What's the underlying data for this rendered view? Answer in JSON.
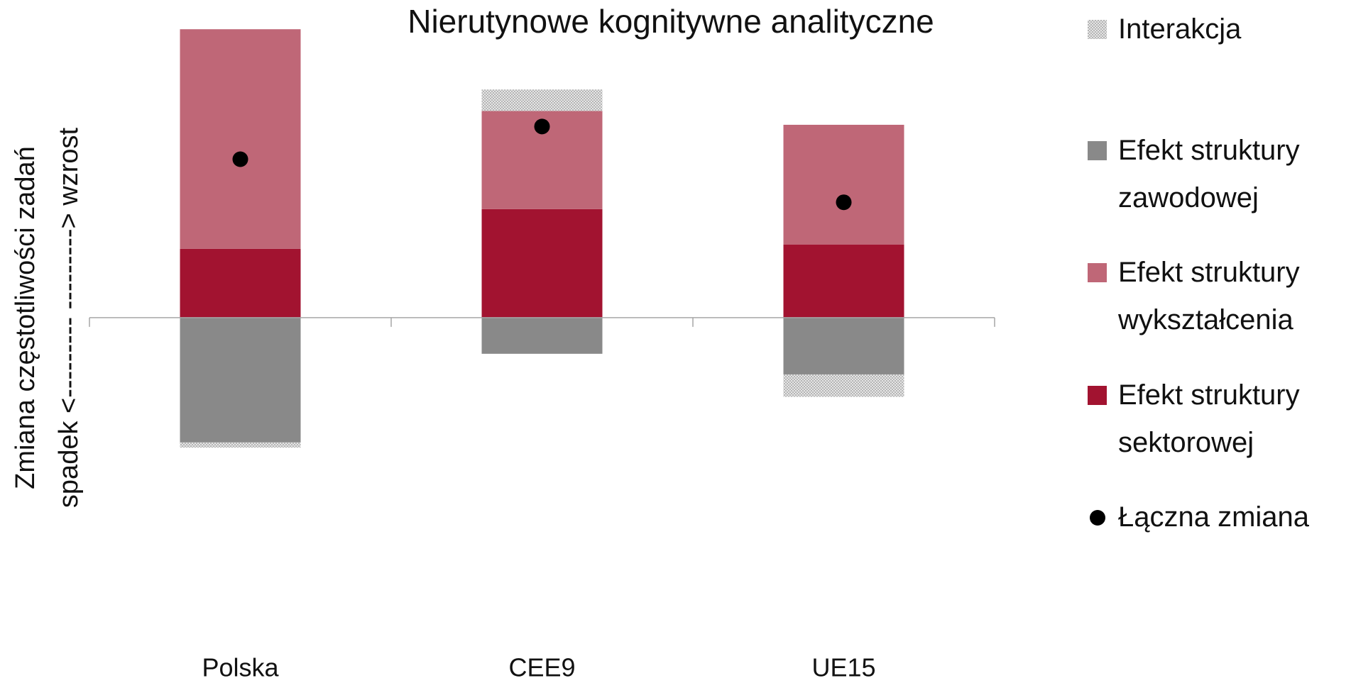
{
  "chart_data": {
    "type": "bar",
    "stacked": true,
    "title": "Nierutynowe kognitywne analityczne",
    "ylabel": [
      "Zmiana  częstotliwości  zadań",
      "spadek <--------- ---------> wzrost"
    ],
    "categories": [
      "Polska",
      "CEE9",
      "UE15"
    ],
    "ylim": [
      -3,
      3.5
    ],
    "series": [
      {
        "name": "Interakcja",
        "color": "#c8c8c8",
        "pattern": true,
        "values": [
          -0.06,
          0.25,
          -0.26
        ]
      },
      {
        "name": "Efekt struktury zawodowej",
        "color": "#898989",
        "values": [
          -1.45,
          -0.42,
          -0.66
        ]
      },
      {
        "name": "Efekt struktury wykształcenia",
        "color": "#bf6777",
        "values": [
          2.55,
          1.14,
          1.39
        ]
      },
      {
        "name": "Efekt struktury sektorowej",
        "color": "#a21330",
        "values": [
          0.8,
          1.26,
          0.85
        ]
      },
      {
        "name": "Łączna zmiana",
        "type": "scatter",
        "color": "#000000",
        "values": [
          1.84,
          2.22,
          1.34
        ]
      }
    ]
  }
}
